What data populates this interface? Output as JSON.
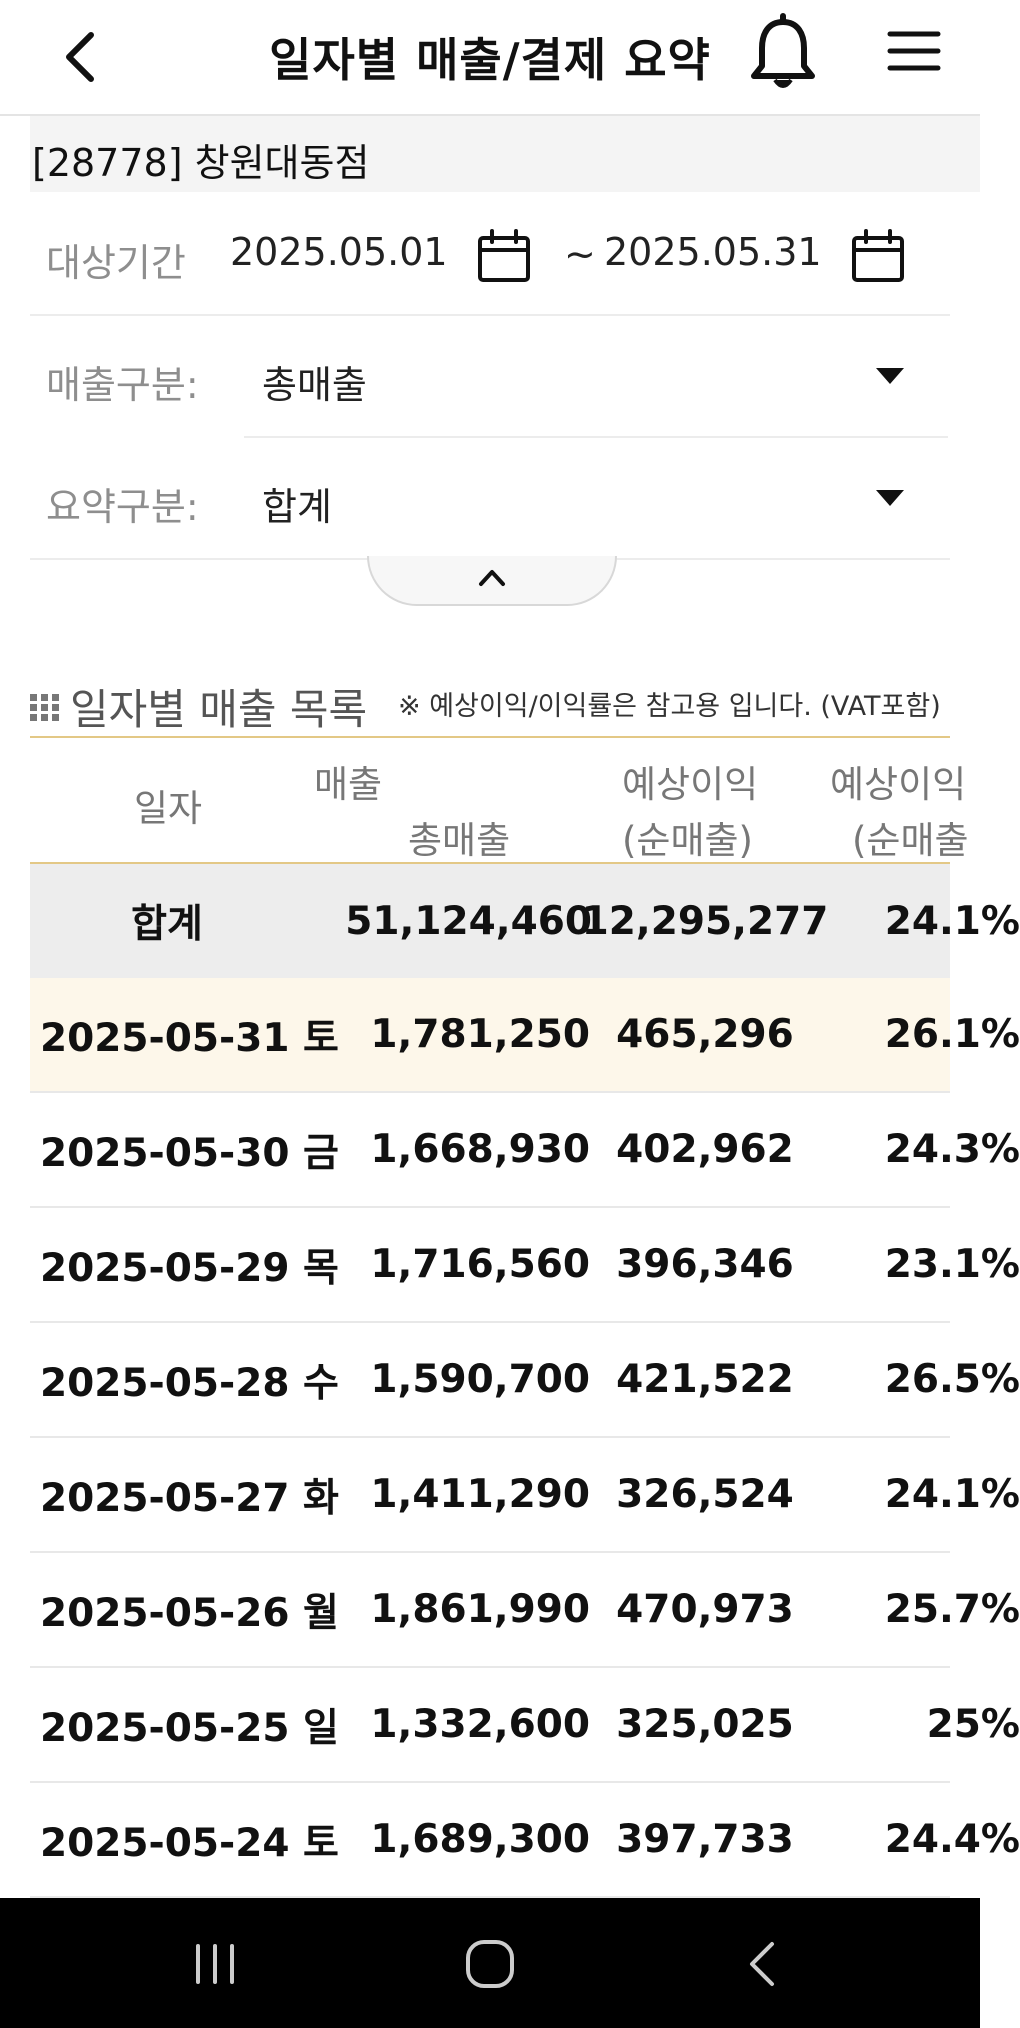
{
  "header": {
    "title": "일자별 매출/결제 요약",
    "icons": [
      "back-icon",
      "bell-icon",
      "menu-icon"
    ]
  },
  "store": "[28778] 창원대동점",
  "filters": {
    "period_label": "대상기간",
    "start_date": "2025.05.01",
    "separator": "~",
    "end_date": "2025.05.31",
    "sales_type_label": "매출구분:",
    "sales_type_value": "총매출",
    "summary_type_label": "요약구분:",
    "summary_type_value": "합계"
  },
  "section": {
    "title": "일자별 매출 목록",
    "note": "※ 예상이익/이익률은 참고용 입니다. (VAT포함)"
  },
  "table": {
    "headers": {
      "date": "일자",
      "sales_group": "매출",
      "sales": "총매출",
      "profit_top": "예상이익",
      "profit_bottom": "(순매출)",
      "rate_top": "예상이익",
      "rate_bottom": "(순매출"
    },
    "total": {
      "label": "합계",
      "sales": "51,124,460",
      "profit": "12,295,277",
      "rate": "24.1%"
    },
    "rows": [
      {
        "date": "2025-05-31 토",
        "sales": "1,781,250",
        "profit": "465,296",
        "rate": "26.1%"
      },
      {
        "date": "2025-05-30 금",
        "sales": "1,668,930",
        "profit": "402,962",
        "rate": "24.3%"
      },
      {
        "date": "2025-05-29 목",
        "sales": "1,716,560",
        "profit": "396,346",
        "rate": "23.1%"
      },
      {
        "date": "2025-05-28 수",
        "sales": "1,590,700",
        "profit": "421,522",
        "rate": "26.5%"
      },
      {
        "date": "2025-05-27 화",
        "sales": "1,411,290",
        "profit": "326,524",
        "rate": "24.1%"
      },
      {
        "date": "2025-05-26 월",
        "sales": "1,861,990",
        "profit": "470,973",
        "rate": "25.7%"
      },
      {
        "date": "2025-05-25 일",
        "sales": "1,332,600",
        "profit": "325,025",
        "rate": "25%"
      },
      {
        "date": "2025-05-24 토",
        "sales": "1,689,300",
        "profit": "397,733",
        "rate": "24.4%"
      }
    ]
  },
  "colors": {
    "accent_line": "#e3c886",
    "highlight_row": "#fdf7ea",
    "total_row": "#ededed",
    "nav_bar": "#000000"
  }
}
